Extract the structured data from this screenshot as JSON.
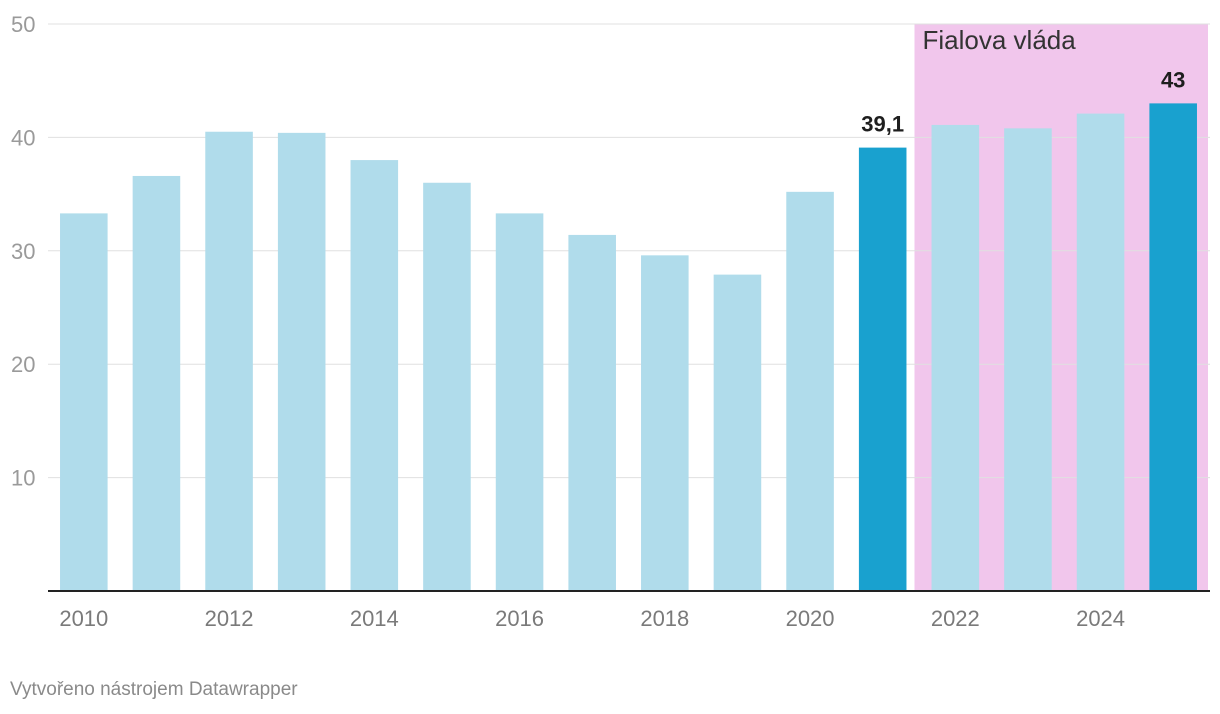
{
  "chart_data": {
    "type": "bar",
    "categories": [
      "2010",
      "2011",
      "2012",
      "2013",
      "2014",
      "2015",
      "2016",
      "2017",
      "2018",
      "2019",
      "2020",
      "2021",
      "2022",
      "2023",
      "2024",
      "2025"
    ],
    "values": [
      33.3,
      36.6,
      40.5,
      40.4,
      38.0,
      36.0,
      33.3,
      31.4,
      29.6,
      27.9,
      35.2,
      39.1,
      41.1,
      40.8,
      42.1,
      43.0
    ],
    "highlighted": [
      "2021",
      "2025"
    ],
    "data_labels": {
      "2021": "39,1",
      "2025": "43"
    },
    "x_tick_labels": [
      "2010",
      "2012",
      "2014",
      "2016",
      "2018",
      "2020",
      "2022",
      "2024"
    ],
    "y_ticks": [
      "10",
      "20",
      "30",
      "40",
      "50"
    ],
    "ylim": [
      0,
      50
    ],
    "grid": true,
    "shaded_range": {
      "label": "Fialova vláda",
      "from": "2022",
      "to": "2025"
    },
    "colors": {
      "bar": "#b0dceb",
      "highlight": "#19a1cf",
      "band": "#f1c6ec",
      "grid": "#e0e0e0",
      "axis": "#222222"
    }
  },
  "footer": {
    "credit": "Vytvořeno nástrojem Datawrapper"
  }
}
